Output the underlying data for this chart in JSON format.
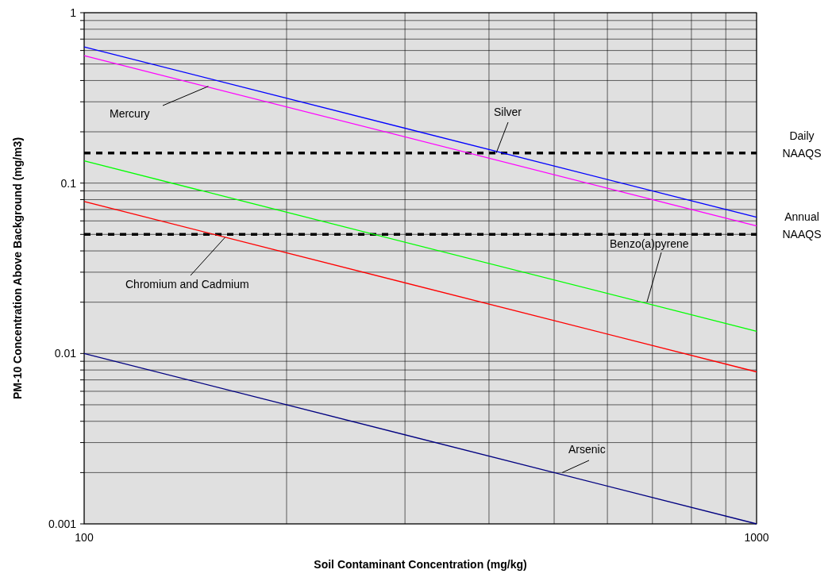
{
  "chart_data": {
    "type": "line",
    "xlabel": "Soil Contaminant Concentration (mg/kg)",
    "ylabel": "PM-10 Concentration Above Background (mg/m3)",
    "x": [
      100,
      1000
    ],
    "series": [
      {
        "color": "#0000ff",
        "values": [
          0.63,
          0.063
        ]
      },
      {
        "color": "#ff00ff",
        "values": [
          0.56,
          0.056
        ]
      },
      {
        "color": "#00ff00",
        "values": [
          0.135,
          0.0135
        ]
      },
      {
        "color": "#ff0000",
        "values": [
          0.078,
          0.0078
        ]
      },
      {
        "color": "#000080",
        "values": [
          0.01,
          0.001
        ]
      }
    ],
    "annotations": [
      {
        "text": "Silver",
        "x": 410,
        "y": 0.15
      },
      {
        "text": "Mercury",
        "x": 153,
        "y": 0.37
      },
      {
        "text": "Benzo(a)pyrene",
        "x": 687,
        "y": 0.02
      },
      {
        "text": "Chromium and Cadmium",
        "x": 162,
        "y": 0.048
      },
      {
        "text": "Arsenic",
        "x": 514,
        "y": 0.002
      }
    ],
    "log": "xy",
    "xlim": [
      100,
      1000
    ],
    "ylim": [
      0.001,
      1
    ],
    "xticks": [
      100,
      {
        "value": 200,
        "label": null
      },
      {
        "value": 300,
        "label": null
      },
      {
        "value": 400,
        "label": null
      },
      {
        "value": 500,
        "label": null
      },
      {
        "value": 600,
        "label": null
      },
      {
        "value": 700,
        "label": null
      },
      {
        "value": 800,
        "label": null
      },
      {
        "value": 900,
        "label": null
      },
      1000
    ],
    "yticks": [
      0.001,
      {
        "value": 0.002,
        "label": null
      },
      {
        "value": 0.003,
        "label": null
      },
      {
        "value": 0.004,
        "label": null
      },
      {
        "value": 0.005,
        "label": null
      },
      {
        "value": 0.006,
        "label": null
      },
      {
        "value": 0.007,
        "label": null
      },
      {
        "value": 0.008,
        "label": null
      },
      {
        "value": 0.009,
        "label": null
      },
      0.01,
      {
        "value": 0.02,
        "label": null
      },
      {
        "value": 0.03,
        "label": null
      },
      {
        "value": 0.04,
        "label": null
      },
      {
        "value": 0.05,
        "label": null
      },
      {
        "value": 0.06,
        "label": null
      },
      {
        "value": 0.07,
        "label": null
      },
      {
        "value": 0.08,
        "label": null
      },
      {
        "value": 0.09,
        "label": null
      },
      0.1,
      {
        "value": 0.2,
        "label": null
      },
      {
        "value": 0.3,
        "label": null
      },
      {
        "value": 0.4,
        "label": null
      },
      {
        "value": 0.5,
        "label": null
      },
      {
        "value": 0.6,
        "label": null
      },
      {
        "value": 0.7,
        "label": null
      },
      {
        "value": 0.8,
        "label": null
      },
      {
        "value": 0.9,
        "label": null
      },
      1
    ],
    "grid": true,
    "ref_lines": [
      {
        "axis": "y",
        "value": 0.15,
        "label": "Daily NAAQS",
        "color": "#000000",
        "line_style": "dashed"
      },
      {
        "axis": "y",
        "value": 0.05,
        "label": "Annual NAAQS",
        "color": "#000000",
        "line_style": "dashed"
      }
    ]
  }
}
